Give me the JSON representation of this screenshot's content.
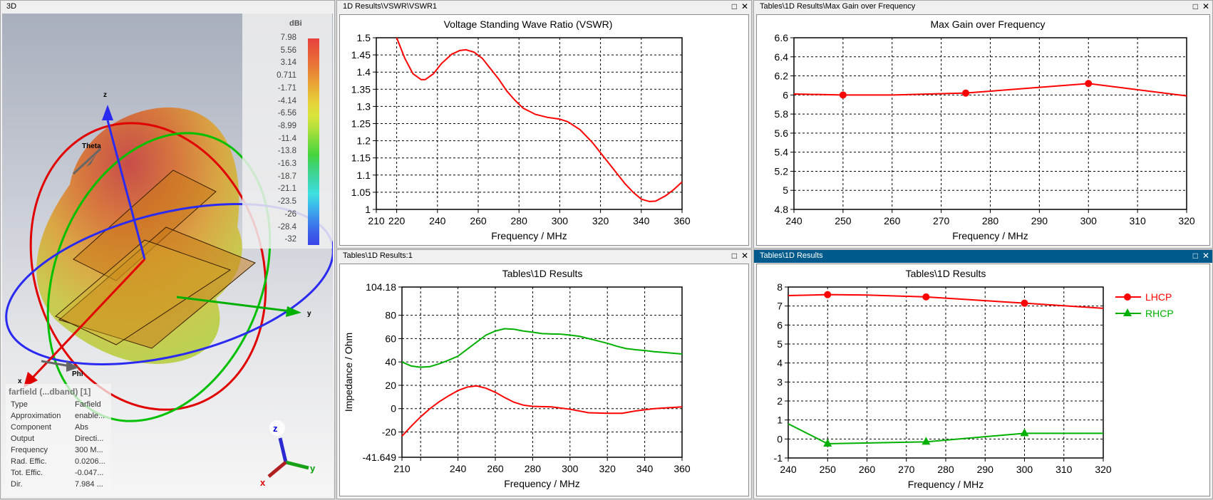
{
  "panels": {
    "view3d": {
      "title": "3D",
      "colorbar": {
        "unit": "dBi",
        "labels": [
          "7.98",
          "5.56",
          "3.14",
          "0.711",
          "-1.71",
          "-4.14",
          "-6.56",
          "-8.99",
          "-11.4",
          "-13.8",
          "-16.3",
          "-18.7",
          "-21.1",
          "-23.5",
          "-26",
          "-28.4",
          "-32"
        ],
        "colors": [
          "#e8413c",
          "#e85a3a",
          "#e97438",
          "#ea9236",
          "#e8b436",
          "#e6d33a",
          "#d8e43c",
          "#b0e03c",
          "#7ada3c",
          "#45d53e",
          "#3ed27a",
          "#3ed6b0",
          "#3ee0e0",
          "#3cb8ea",
          "#3c8aea",
          "#3c62ea",
          "#3c44e8"
        ]
      },
      "axis_labels": {
        "z": "z",
        "y": "y",
        "x": "x",
        "theta": "Theta",
        "phi": "Phi"
      },
      "info": {
        "title": "farfield (...dband) [1]",
        "rows": [
          {
            "key": "Type",
            "value": "Farfield"
          },
          {
            "key": "Approximation",
            "value": "enable..."
          },
          {
            "key": "Component",
            "value": "Abs"
          },
          {
            "key": "Output",
            "value": "Directi..."
          },
          {
            "key": "Frequency",
            "value": "300 M..."
          },
          {
            "key": "Rad. Effic.",
            "value": "0.0206..."
          },
          {
            "key": "Tot. Effic.",
            "value": "-0.047..."
          },
          {
            "key": "Dir.",
            "value": "7.984 ..."
          }
        ]
      }
    },
    "vswr": {
      "title": "1D Results\\VSWR\\VSWR1"
    },
    "impedance": {
      "title": "Tables\\1D Results:1"
    },
    "gain": {
      "title": "Tables\\1D Results\\Max Gain over Frequency"
    },
    "polarization": {
      "title": "Tables\\1D Results",
      "active": true
    }
  },
  "window_buttons": {
    "maximize": "□",
    "close": "✕"
  },
  "chart_data": [
    {
      "id": "vswr",
      "type": "line",
      "title": "Voltage Standing Wave Ratio (VSWR)",
      "xlabel": "Frequency / MHz",
      "ylabel": "",
      "xlim": [
        210,
        360
      ],
      "ylim": [
        1,
        1.5
      ],
      "xticks": [
        210,
        220,
        240,
        260,
        280,
        300,
        320,
        340,
        360
      ],
      "yticks": [
        1,
        1.05,
        1.1,
        1.15,
        1.2,
        1.25,
        1.3,
        1.35,
        1.4,
        1.45,
        1.5
      ],
      "ytick_labels": [
        "1",
        "1.05",
        "1.1",
        "1.15",
        "1.2",
        "1.25",
        "1.3",
        "1.35",
        "1.4",
        "1.45",
        "1.5"
      ],
      "grid": true,
      "series": [
        {
          "color": "#ff0000",
          "marker": "none",
          "x": [
            220,
            224,
            228,
            232,
            234,
            238,
            242,
            247,
            251,
            254,
            258,
            262,
            266,
            270,
            274,
            278,
            282,
            288,
            294,
            300,
            304,
            310,
            316,
            320,
            326,
            332,
            336,
            340,
            344,
            347,
            352,
            356,
            360
          ],
          "y": [
            1.5,
            1.44,
            1.395,
            1.378,
            1.378,
            1.395,
            1.425,
            1.452,
            1.463,
            1.465,
            1.458,
            1.44,
            1.41,
            1.38,
            1.345,
            1.318,
            1.295,
            1.277,
            1.268,
            1.263,
            1.255,
            1.232,
            1.195,
            1.165,
            1.12,
            1.075,
            1.05,
            1.03,
            1.023,
            1.024,
            1.04,
            1.058,
            1.08
          ]
        }
      ]
    },
    {
      "id": "impedance",
      "type": "line",
      "title": "Tables\\1D Results",
      "xlabel": "Frequency / MHz",
      "ylabel": "Impedance / Ohm",
      "xlim": [
        210,
        360
      ],
      "ylim": [
        -41.649,
        104.18
      ],
      "xticks": [
        210,
        220,
        240,
        260,
        280,
        300,
        320,
        340,
        360
      ],
      "xtick_labels": [
        "210",
        "",
        "240",
        "260",
        "280",
        "300",
        "320",
        "340",
        "360"
      ],
      "yticks": [
        -41.649,
        -20,
        0,
        20,
        40,
        60,
        80,
        104.18
      ],
      "ytick_labels": [
        "-41.649",
        "-20",
        "0",
        "20",
        "40",
        "60",
        "80",
        "104.18"
      ],
      "grid": true,
      "series": [
        {
          "color": "#00b000",
          "marker": "none",
          "x": [
            210,
            215,
            220,
            225,
            230,
            235,
            240,
            245,
            250,
            255,
            260,
            265,
            270,
            275,
            280,
            285,
            290,
            295,
            300,
            305,
            310,
            315,
            320,
            325,
            330,
            335,
            340,
            345,
            350,
            355,
            360
          ],
          "y": [
            40,
            36.5,
            35.5,
            36,
            38.5,
            41.5,
            45,
            51,
            57,
            63,
            66.5,
            68.5,
            68,
            66.5,
            65.5,
            64.3,
            64,
            63.8,
            63,
            62,
            60,
            58,
            56,
            53.5,
            51.5,
            50.5,
            49.8,
            48.8,
            48.2,
            47.5,
            46.8
          ]
        },
        {
          "color": "#ff0000",
          "marker": "none",
          "x": [
            210,
            215,
            220,
            225,
            230,
            235,
            240,
            245,
            250,
            255,
            260,
            265,
            270,
            275,
            280,
            290,
            300,
            310,
            320,
            328,
            335,
            340,
            345,
            350,
            355,
            360
          ],
          "y": [
            -23.5,
            -15,
            -7,
            0,
            6,
            11,
            15.5,
            18.5,
            19.5,
            17.5,
            14,
            9.5,
            5.5,
            3,
            2,
            1.5,
            -0.5,
            -3.5,
            -4,
            -4,
            -2,
            -1,
            0,
            0.5,
            1,
            1.5
          ]
        }
      ]
    },
    {
      "id": "gain",
      "type": "line",
      "title": "Max Gain over Frequency",
      "xlabel": "Frequency / MHz",
      "ylabel": "",
      "xlim": [
        240,
        320
      ],
      "ylim": [
        4.8,
        6.6
      ],
      "xticks": [
        240,
        250,
        260,
        270,
        280,
        290,
        300,
        310,
        320
      ],
      "yticks": [
        4.8,
        5,
        5.2,
        5.4,
        5.6,
        5.8,
        6,
        6.2,
        6.4,
        6.6
      ],
      "ytick_labels": [
        "4.8",
        "5",
        "5.2",
        "5.4",
        "5.6",
        "5.8",
        "6",
        "6.2",
        "6.4",
        "6.6"
      ],
      "grid": true,
      "series": [
        {
          "color": "#ff0000",
          "marker": "circle",
          "marker_x": [
            250,
            275,
            300
          ],
          "x": [
            240,
            250,
            260,
            275,
            300,
            320
          ],
          "y": [
            6.01,
            6.0,
            6.0,
            6.02,
            6.12,
            5.99
          ]
        }
      ]
    },
    {
      "id": "polarization",
      "type": "line",
      "title": "Tables\\1D Results",
      "xlabel": "Frequency / MHz",
      "ylabel": "",
      "xlim": [
        240,
        320
      ],
      "ylim": [
        -1,
        8
      ],
      "xticks": [
        240,
        250,
        260,
        270,
        280,
        290,
        300,
        310,
        320
      ],
      "yticks": [
        -1,
        0,
        1,
        2,
        3,
        4,
        5,
        6,
        7,
        8
      ],
      "ytick_labels": [
        "-1",
        "0",
        "1",
        "2",
        "3",
        "4",
        "5",
        "6",
        "7",
        "8"
      ],
      "grid": true,
      "legend": "right",
      "series": [
        {
          "name": "LHCP",
          "color": "#ff0000",
          "marker": "circle",
          "marker_x": [
            250,
            275,
            300
          ],
          "x": [
            240,
            250,
            260,
            275,
            300,
            320
          ],
          "y": [
            7.55,
            7.6,
            7.58,
            7.48,
            7.15,
            6.88
          ]
        },
        {
          "name": "RHCP",
          "color": "#00b000",
          "marker": "triangle",
          "marker_x": [
            250,
            275,
            300
          ],
          "x": [
            240,
            250,
            275,
            300,
            320
          ],
          "y": [
            0.8,
            -0.25,
            -0.15,
            0.3,
            0.3
          ]
        }
      ]
    }
  ]
}
